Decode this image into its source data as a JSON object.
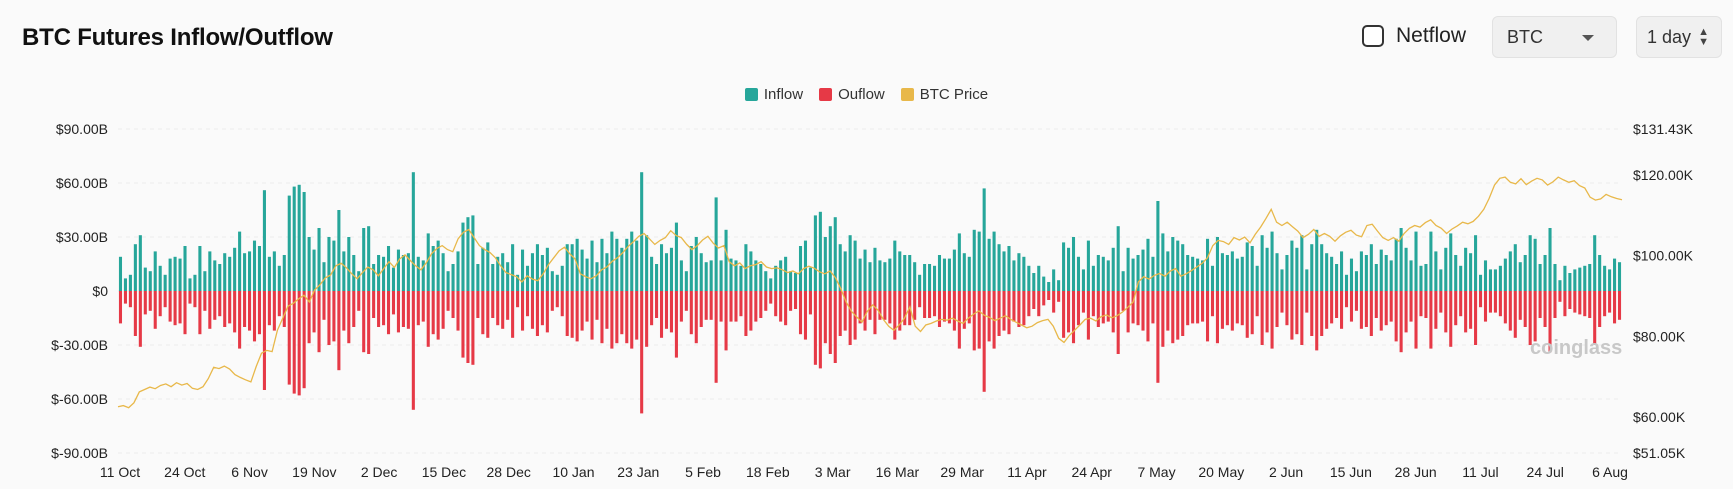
{
  "header": {
    "title": "BTC Futures Inflow/Outflow",
    "netflow_label": "Netflow",
    "coin_select_value": "BTC",
    "interval_select_value": "1 day"
  },
  "watermark": "coinglass",
  "colors": {
    "inflow": "#26a69a",
    "outflow": "#e63946",
    "price": "#e8b84a",
    "grid": "#ececec"
  },
  "chart_data": {
    "type": "bar",
    "legend": [
      "Inflow",
      "Ouflow",
      "BTC Price"
    ],
    "legend_position": "top-center",
    "grid": true,
    "y_left": {
      "ticks": [
        "$90.00B",
        "$60.00B",
        "$30.00B",
        "$0",
        "$-30.00B",
        "$-60.00B",
        "$-90.00B"
      ],
      "range": [
        -90,
        90
      ],
      "unit": "B"
    },
    "y_right": {
      "ticks": [
        "$131.43K",
        "$120.00K",
        "$100.00K",
        "$80.00K",
        "$60.00K",
        "$51.05K"
      ],
      "values": [
        131.43,
        120,
        100,
        80,
        60,
        51.05
      ]
    },
    "x_ticks": [
      "11 Oct",
      "24 Oct",
      "6 Nov",
      "19 Nov",
      "2 Dec",
      "15 Dec",
      "28 Dec",
      "10 Jan",
      "23 Jan",
      "5 Feb",
      "18 Feb",
      "3 Mar",
      "16 Mar",
      "29 Mar",
      "11 Apr",
      "24 Apr",
      "7 May",
      "20 May",
      "2 Jun",
      "15 Jun",
      "28 Jun",
      "11 Jul",
      "24 Jul",
      "6 Aug"
    ],
    "inflow": [
      19,
      7,
      9,
      26,
      31,
      13,
      11,
      22,
      14,
      9,
      18,
      19,
      18,
      25,
      7,
      9,
      25,
      11,
      22,
      17,
      15,
      21,
      19,
      24,
      33,
      21,
      22,
      28,
      25,
      56,
      19,
      22,
      14,
      20,
      53,
      58,
      59,
      55,
      30,
      23,
      35,
      16,
      30,
      28,
      45,
      22,
      30,
      20,
      11,
      35,
      36,
      15,
      20,
      19,
      25,
      13,
      23,
      20,
      21,
      66,
      19,
      17,
      32,
      25,
      28,
      21,
      11,
      15,
      22,
      38,
      41,
      42,
      15,
      24,
      27,
      15,
      19,
      21,
      16,
      26,
      9,
      23,
      14,
      21,
      26,
      20,
      24,
      11,
      9,
      14,
      26,
      26,
      29,
      23,
      18,
      28,
      16,
      29,
      21,
      33,
      29,
      24,
      29,
      33,
      28,
      66,
      31,
      19,
      15,
      26,
      21,
      24,
      38,
      17,
      11,
      25,
      30,
      21,
      16,
      17,
      52,
      17,
      34,
      18,
      17,
      14,
      26,
      22,
      17,
      15,
      11,
      7,
      14,
      17,
      19,
      11,
      10,
      25,
      28,
      13,
      42,
      44,
      30,
      36,
      41,
      26,
      22,
      31,
      28,
      18,
      23,
      16,
      24,
      17,
      16,
      18,
      28,
      22,
      20,
      20,
      16,
      9,
      15,
      15,
      14,
      20,
      18,
      18,
      23,
      32,
      21,
      19,
      34,
      33,
      57,
      29,
      33,
      26,
      22,
      25,
      17,
      21,
      19,
      14,
      10,
      14,
      8,
      5,
      12,
      6,
      27,
      24,
      30,
      19,
      12,
      28,
      14,
      20,
      19,
      17,
      24,
      36,
      11,
      24,
      18,
      20,
      23,
      29,
      19,
      50,
      32,
      22,
      30,
      28,
      26,
      20,
      19,
      18,
      17,
      29,
      14,
      30,
      21,
      20,
      22,
      18,
      19,
      27,
      25,
      14,
      31,
      24,
      33,
      21,
      12,
      20,
      28,
      24,
      31,
      12,
      26,
      34,
      26,
      21,
      19,
      15,
      22,
      9,
      18,
      11,
      22,
      20,
      26,
      15,
      23,
      20,
      17,
      29,
      35,
      24,
      17,
      33,
      14,
      15,
      33,
      22,
      12,
      24,
      32,
      20,
      14,
      24,
      21,
      31,
      9,
      17,
      12,
      12,
      14,
      18,
      22,
      26,
      16,
      20,
      31,
      29,
      15,
      20,
      35,
      15,
      6,
      14,
      10,
      12,
      13,
      14,
      15,
      31,
      20,
      14,
      12,
      18,
      16
    ],
    "outflow": [
      -18,
      -7,
      -9,
      -25,
      -31,
      -13,
      -11,
      -21,
      -14,
      -9,
      -17,
      -19,
      -18,
      -24,
      -7,
      -9,
      -24,
      -11,
      -21,
      -16,
      -14,
      -20,
      -18,
      -23,
      -32,
      -20,
      -22,
      -28,
      -24,
      -55,
      -19,
      -22,
      -14,
      -20,
      -52,
      -57,
      -58,
      -54,
      -29,
      -23,
      -34,
      -16,
      -30,
      -28,
      -44,
      -22,
      -29,
      -20,
      -11,
      -34,
      -35,
      -15,
      -20,
      -19,
      -24,
      -13,
      -23,
      -20,
      -21,
      -66,
      -19,
      -17,
      -31,
      -24,
      -27,
      -21,
      -11,
      -15,
      -22,
      -37,
      -40,
      -41,
      -15,
      -24,
      -26,
      -15,
      -19,
      -21,
      -16,
      -26,
      -9,
      -22,
      -14,
      -21,
      -25,
      -19,
      -23,
      -11,
      -9,
      -14,
      -25,
      -26,
      -28,
      -22,
      -17,
      -27,
      -16,
      -29,
      -21,
      -32,
      -29,
      -24,
      -29,
      -32,
      -27,
      -68,
      -31,
      -19,
      -15,
      -26,
      -21,
      -23,
      -37,
      -17,
      -11,
      -24,
      -29,
      -20,
      -16,
      -16,
      -51,
      -17,
      -33,
      -17,
      -17,
      -14,
      -25,
      -22,
      -17,
      -15,
      -11,
      -7,
      -14,
      -17,
      -19,
      -11,
      -10,
      -24,
      -27,
      -13,
      -41,
      -43,
      -29,
      -35,
      -40,
      -25,
      -22,
      -30,
      -27,
      -18,
      -22,
      -16,
      -24,
      -16,
      -16,
      -18,
      -27,
      -22,
      -19,
      -19,
      -16,
      -9,
      -15,
      -15,
      -14,
      -20,
      -17,
      -18,
      -22,
      -32,
      -21,
      -18,
      -33,
      -32,
      -56,
      -28,
      -32,
      -25,
      -22,
      -24,
      -17,
      -20,
      -19,
      -14,
      -10,
      -14,
      -8,
      -5,
      -12,
      -6,
      -26,
      -23,
      -29,
      -19,
      -12,
      -27,
      -14,
      -20,
      -18,
      -17,
      -23,
      -35,
      -11,
      -23,
      -18,
      -19,
      -22,
      -28,
      -18,
      -51,
      -31,
      -22,
      -29,
      -27,
      -25,
      -19,
      -18,
      -18,
      -17,
      -28,
      -14,
      -29,
      -21,
      -19,
      -22,
      -18,
      -19,
      -26,
      -24,
      -14,
      -30,
      -23,
      -32,
      -20,
      -12,
      -19,
      -27,
      -24,
      -30,
      -12,
      -25,
      -33,
      -25,
      -21,
      -18,
      -15,
      -21,
      -9,
      -17,
      -11,
      -21,
      -20,
      -25,
      -15,
      -22,
      -19,
      -17,
      -28,
      -34,
      -23,
      -17,
      -32,
      -14,
      -15,
      -32,
      -21,
      -12,
      -23,
      -31,
      -19,
      -14,
      -23,
      -21,
      -30,
      -9,
      -17,
      -12,
      -12,
      -14,
      -18,
      -22,
      -26,
      -16,
      -20,
      -30,
      -28,
      -15,
      -20,
      -34,
      -15,
      -6,
      -14,
      -10,
      -12,
      -13,
      -14,
      -15,
      -30,
      -20,
      -14,
      -12,
      -18,
      -16
    ],
    "btc_price_k": [
      62.5,
      62.8,
      62.3,
      63.5,
      66.2,
      66.8,
      67.4,
      67.0,
      67.8,
      68.2,
      67.5,
      68.5,
      67.9,
      68.3,
      67.1,
      66.8,
      67.5,
      69.5,
      72.3,
      72.0,
      72.6,
      71.9,
      70.5,
      69.8,
      69.2,
      68.7,
      72.5,
      75.8,
      76.5,
      76.2,
      81.5,
      84.5,
      87.5,
      88.2,
      89.3,
      90.2,
      88.5,
      91.5,
      92.8,
      94.5,
      95.2,
      97.5,
      98.1,
      97.0,
      95.5,
      94.3,
      95.8,
      97.2,
      96.5,
      95.0,
      96.8,
      98.5,
      97.1,
      99.2,
      100.2,
      98.8,
      97.5,
      96.5,
      98.2,
      100.5,
      101.8,
      102.5,
      101.5,
      101.0,
      104.2,
      105.8,
      106.5,
      104.5,
      102.5,
      101.5,
      100.8,
      99.5,
      97.5,
      95.8,
      95.3,
      94.8,
      93.5,
      95.0,
      94.2,
      93.8,
      95.5,
      97.8,
      99.5,
      101.2,
      102.1,
      100.5,
      99.2,
      95.5,
      94.8,
      94.3,
      95.0,
      96.5,
      97.2,
      98.6,
      99.5,
      100.8,
      102.3,
      103.5,
      104.8,
      105.5,
      104.2,
      102.8,
      103.8,
      104.5,
      106.2,
      105.0,
      104.5,
      102.8,
      101.5,
      102.5,
      103.9,
      104.8,
      103.1,
      101.9,
      102.5,
      98.5,
      97.5,
      98.2,
      96.8,
      97.5,
      97.8,
      98.5,
      97.2,
      96.8,
      97.0,
      96.5,
      95.8,
      96.2,
      95.5,
      96.8,
      97.4,
      96.9,
      96.0,
      95.5,
      96.2,
      94.5,
      91.8,
      88.5,
      86.2,
      84.8,
      83.5,
      86.2,
      87.8,
      86.5,
      84.2,
      82.5,
      81.5,
      82.8,
      84.5,
      87.3,
      82.5,
      81.2,
      82.8,
      83.2,
      83.8,
      84.2,
      84.0,
      84.5,
      83.8,
      83.2,
      84.5,
      85.5,
      86.3,
      85.2,
      84.7,
      83.9,
      84.5,
      85.1,
      84.2,
      83.5,
      82.8,
      82.1,
      82.5,
      83.4,
      83.9,
      84.2,
      82.5,
      79.5,
      78.5,
      80.2,
      81.5,
      82.8,
      84.2,
      84.5,
      83.8,
      84.9,
      85.3,
      84.6,
      85.1,
      86.0,
      87.2,
      88.5,
      93.5,
      94.8,
      94.2,
      95.1,
      95.6,
      94.9,
      96.2,
      96.8,
      94.9,
      95.5,
      96.3,
      97.2,
      98.1,
      99.5,
      102.5,
      103.8,
      103.5,
      102.8,
      104.5,
      103.9,
      104.6,
      103.2,
      105.3,
      107.1,
      109.2,
      111.5,
      108.3,
      107.5,
      108.3,
      107.2,
      106.1,
      104.5,
      105.3,
      106.5,
      104.8,
      105.5,
      104.8,
      103.6,
      104.9,
      105.8,
      106.3,
      105.1,
      104.7,
      107.5,
      107.8,
      106.1,
      104.5,
      103.8,
      104.5,
      103.6,
      105.5,
      106.8,
      107.5,
      107.1,
      108.2,
      108.9,
      107.5,
      106.8,
      105.5,
      106.6,
      107.4,
      108.3,
      107.9,
      108.5,
      109.8,
      111.5,
      114.2,
      117.5,
      119.2,
      119.5,
      118.2,
      117.8,
      119.1,
      117.6,
      118.5,
      119.2,
      118.8,
      117.5,
      118.3,
      119.5,
      118.8,
      118.2,
      118.6,
      117.4,
      116.8,
      114.5,
      113.8,
      114.1,
      115.2,
      114.6,
      114.2,
      113.9
    ]
  }
}
